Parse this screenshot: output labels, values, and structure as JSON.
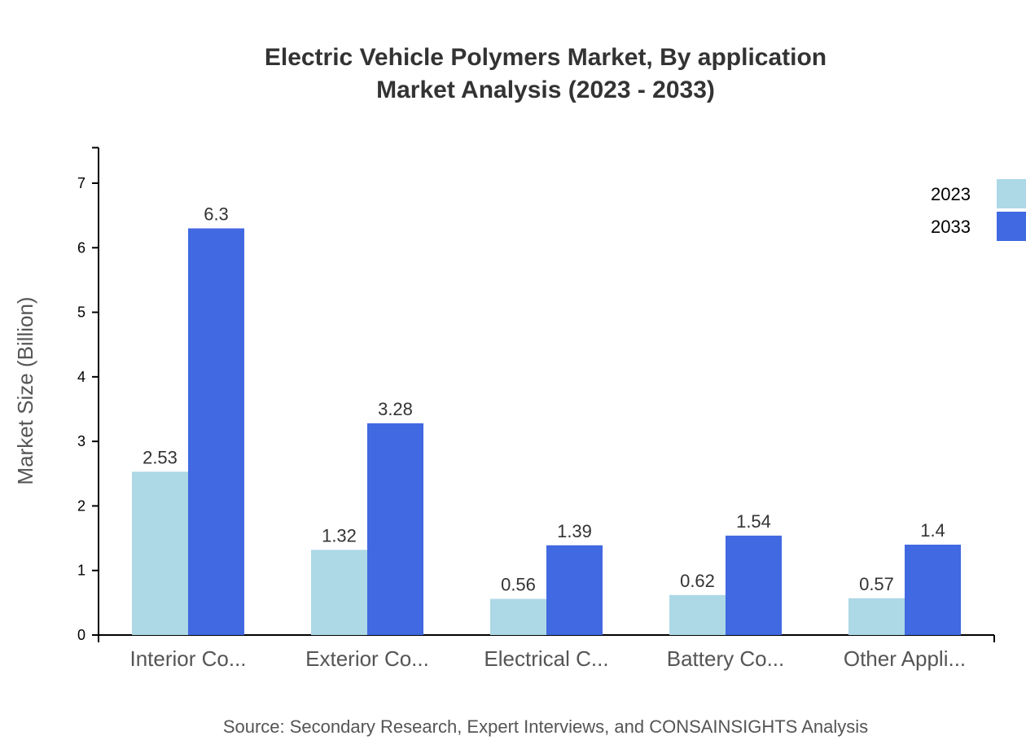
{
  "chart_data": {
    "type": "bar",
    "title": "Electric Vehicle Polymers Market, By application",
    "subtitle": "Market Analysis (2023 - 2033)",
    "xlabel": "",
    "ylabel": "Market Size (Billion)",
    "ylim": [
      0,
      7.55
    ],
    "yticks": [
      0,
      1,
      2,
      3,
      4,
      5,
      6,
      7
    ],
    "grid": false,
    "legend_placement": "top-right",
    "categories": [
      "Interior Co...",
      "Exterior Co...",
      "Electrical C...",
      "Battery Co...",
      "Other Appli..."
    ],
    "series": [
      {
        "name": "2023",
        "color": "#ADD8E6",
        "values": [
          2.53,
          1.32,
          0.56,
          0.62,
          0.57
        ]
      },
      {
        "name": "2033",
        "color": "#4169E1",
        "values": [
          6.3,
          3.28,
          1.39,
          1.54,
          1.4
        ]
      }
    ],
    "source": "Source: Secondary Research, Expert Interviews, and CONSAINSIGHTS Analysis"
  }
}
